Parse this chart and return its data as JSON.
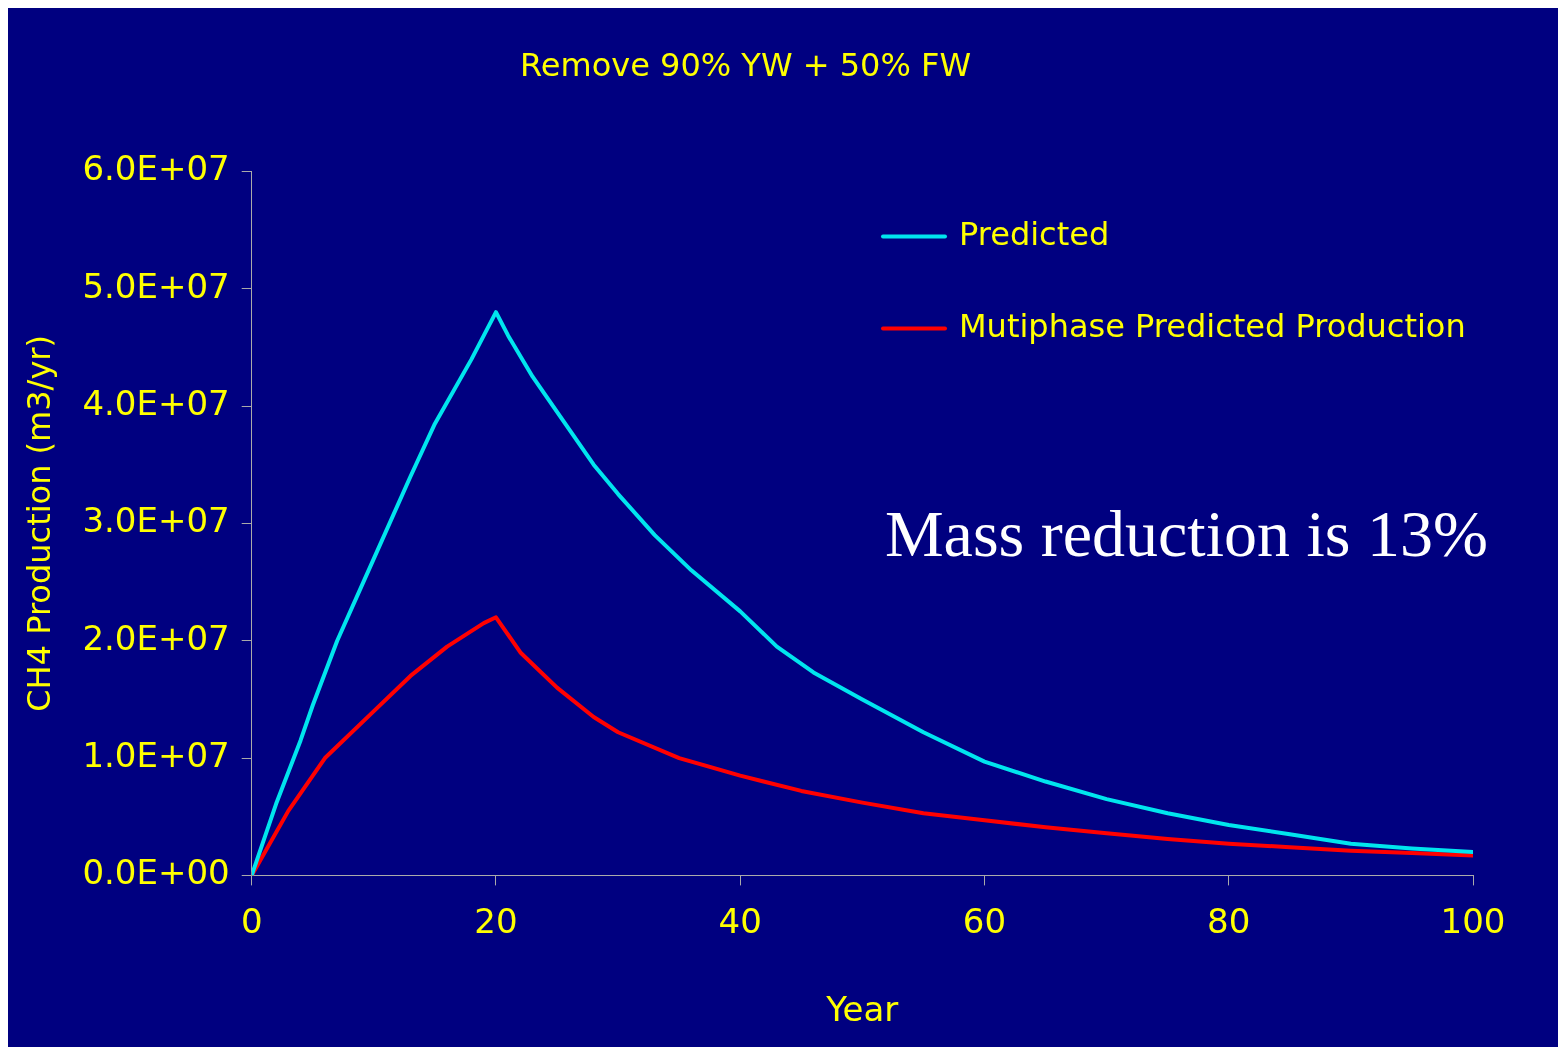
{
  "chart_data": {
    "type": "line",
    "title": "Remove 90% YW + 50% FW",
    "xlabel": "Year",
    "ylabel": "CH4 Production (m3/yr)",
    "annotations": [
      "Mass reduction is 13%"
    ],
    "xlim": [
      0,
      100
    ],
    "xticks": [
      0,
      20,
      40,
      60,
      80,
      100
    ],
    "ylim": [
      0,
      60000000
    ],
    "yticks": [
      {
        "value": 0,
        "label": "0.0E+00"
      },
      {
        "value": 10000000,
        "label": "1.0E+07"
      },
      {
        "value": 20000000,
        "label": "2.0E+07"
      },
      {
        "value": 30000000,
        "label": "3.0E+07"
      },
      {
        "value": 40000000,
        "label": "4.0E+07"
      },
      {
        "value": 50000000,
        "label": "5.0E+07"
      },
      {
        "value": 60000000,
        "label": "6.0E+07"
      }
    ],
    "grid": false,
    "legend": "top right",
    "marker": "none",
    "line_style": "solid",
    "series": [
      {
        "name": "Predicted",
        "color": "#00e5ee",
        "x": [
          0,
          2,
          4,
          5,
          7,
          10,
          13,
          15,
          18,
          20,
          21,
          23,
          25,
          28,
          30,
          33,
          36,
          40,
          43,
          46,
          50,
          55,
          60,
          65,
          70,
          75,
          80,
          85,
          90,
          95,
          100
        ],
        "values": [
          0,
          6100000,
          11500000,
          14500000,
          20000000,
          27000000,
          34000000,
          38500000,
          44000000,
          48000000,
          46000000,
          42500000,
          39500000,
          35000000,
          32500000,
          29000000,
          26000000,
          22500000,
          19500000,
          17300000,
          15000000,
          12200000,
          9700000,
          8000000,
          6500000,
          5300000,
          4300000,
          3500000,
          2700000,
          2300000,
          2000000
        ]
      },
      {
        "name": "Mutiphase Predicted Production",
        "color": "#ff0000",
        "x": [
          0,
          3,
          6,
          10,
          13,
          16,
          19,
          20,
          22,
          25,
          28,
          30,
          35,
          40,
          45,
          50,
          55,
          60,
          65,
          70,
          75,
          80,
          85,
          90,
          95,
          100
        ],
        "values": [
          0,
          5500000,
          10000000,
          14000000,
          17000000,
          19500000,
          21500000,
          22000000,
          19000000,
          16000000,
          13500000,
          12200000,
          10000000,
          8500000,
          7200000,
          6200000,
          5300000,
          4700000,
          4100000,
          3600000,
          3100000,
          2700000,
          2400000,
          2100000,
          1900000,
          1700000
        ]
      }
    ]
  }
}
